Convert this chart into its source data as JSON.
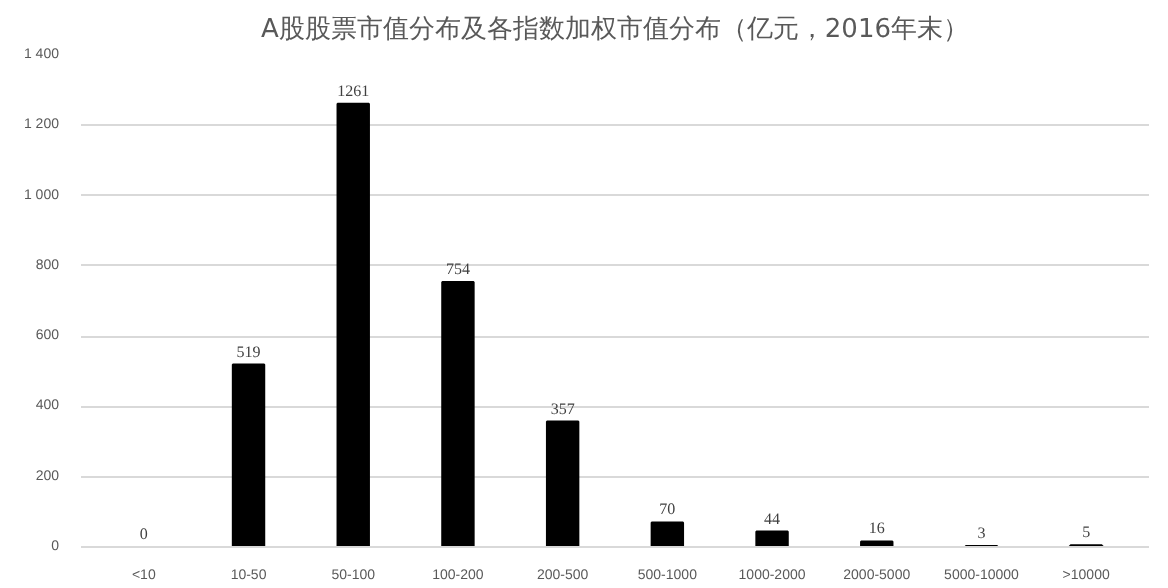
{
  "chart_data": {
    "type": "bar",
    "title": "A股股票市值分布及各指数加权市值分布（亿元，2016年末）",
    "categories": [
      "<10",
      "10-50",
      "50-100",
      "100-200",
      "200-500",
      "500-1000",
      "1000-2000",
      "2000-5000",
      "5000-10000",
      ">10000"
    ],
    "values": [
      0,
      519,
      1261,
      754,
      357,
      70,
      44,
      16,
      3,
      5
    ],
    "color": "#000000",
    "ylim": [
      0,
      1400
    ],
    "yticks": [
      0,
      200,
      400,
      600,
      800,
      {
        "value": 1000,
        "label": "1 000"
      },
      {
        "value": 1200,
        "label": "1 200"
      },
      {
        "value": 1400,
        "label": "1 400"
      }
    ],
    "grid": "y",
    "data_labels": true
  }
}
